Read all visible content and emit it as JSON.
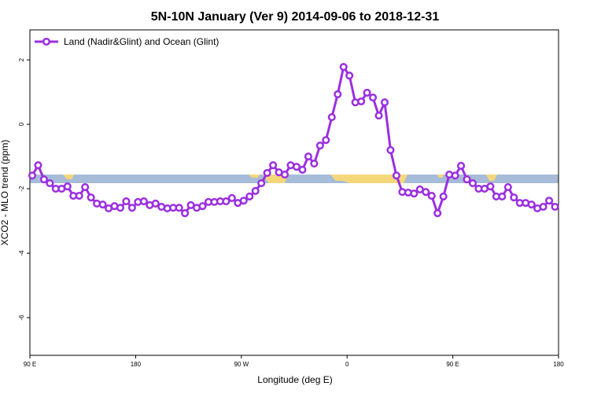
{
  "chart_data": {
    "type": "line",
    "title": "5N-10N January (Ver 9)   2014-09-06 to 2018-12-31",
    "x_label": "Longitude (deg E)",
    "y_label": "XCO2 - MLO trend (ppm)",
    "x": [
      92,
      97,
      102,
      107,
      112,
      117,
      122,
      127,
      132,
      137,
      142,
      147,
      152,
      157,
      162,
      167,
      172,
      177,
      182,
      187,
      192,
      197,
      202,
      207,
      212,
      217,
      222,
      227,
      232,
      237,
      242,
      247,
      252,
      257,
      262,
      267,
      272,
      277,
      282,
      287,
      292,
      297,
      302,
      307,
      312,
      317,
      322,
      327,
      332,
      337,
      342,
      347,
      352,
      357,
      362,
      367,
      372,
      377,
      382,
      387,
      392,
      397,
      402,
      407,
      412,
      417,
      422,
      427,
      432,
      437,
      442,
      447,
      452,
      457,
      462,
      467,
      472,
      477,
      482,
      487,
      492,
      497,
      502,
      507,
      512,
      517,
      522,
      527,
      532,
      537
    ],
    "series": [
      {
        "name": "Land (Nadir&Glint) and Ocean (Glint)",
        "color": "#9b2fe0",
        "values": [
          -1.59,
          -1.27,
          -1.71,
          -1.83,
          -2.0,
          -2.0,
          -1.93,
          -2.22,
          -2.22,
          -1.95,
          -2.27,
          -2.46,
          -2.49,
          -2.61,
          -2.54,
          -2.59,
          -2.39,
          -2.59,
          -2.41,
          -2.39,
          -2.51,
          -2.46,
          -2.56,
          -2.61,
          -2.59,
          -2.59,
          -2.76,
          -2.51,
          -2.59,
          -2.54,
          -2.41,
          -2.41,
          -2.39,
          -2.39,
          -2.29,
          -2.44,
          -2.37,
          -2.24,
          -2.07,
          -1.83,
          -1.51,
          -1.27,
          -1.49,
          -1.56,
          -1.27,
          -1.32,
          -1.41,
          -1.0,
          -1.22,
          -0.66,
          -0.49,
          0.22,
          0.93,
          1.78,
          1.51,
          0.68,
          0.71,
          0.98,
          0.83,
          0.27,
          0.68,
          -0.8,
          -1.59,
          -2.1,
          -2.12,
          -2.15,
          -2.02,
          -2.1,
          -2.22,
          -2.76,
          -2.24,
          -1.56,
          -1.59,
          -1.29,
          -1.71,
          -1.83,
          -2.0,
          -2.0,
          -1.93,
          -2.24,
          -2.24,
          -1.95,
          -2.27,
          -2.44,
          -2.44,
          -2.49,
          -2.61,
          -2.56,
          -2.37,
          -2.56
        ]
      }
    ],
    "xlim": [
      90,
      540
    ],
    "xticks": [
      {
        "value": 90,
        "label": "90 E"
      },
      {
        "value": 180,
        "label": "180"
      },
      {
        "value": 270,
        "label": "90 W"
      },
      {
        "value": 360,
        "label": "0"
      },
      {
        "value": 450,
        "label": "90 E"
      },
      {
        "value": 540,
        "label": "180"
      }
    ],
    "ylim": [
      -7.17,
      2.93
    ],
    "yticks": [
      2,
      0,
      -2,
      -4,
      -6
    ],
    "legend": "top-left"
  }
}
